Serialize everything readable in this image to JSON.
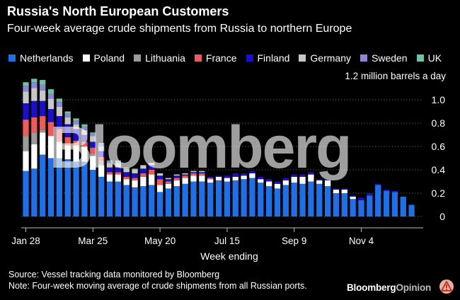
{
  "title": "Russia's North European Customers",
  "subtitle": "Four-week average crude shipments from Russia to northern Europe",
  "source": "Source: Vessel tracking data monitored by Bloomberg",
  "note": "Note: Four-week moving average of crude shipments from all Russian ports.",
  "brand": {
    "main": "Bloomberg",
    "opinion": "Opinion"
  },
  "watermark": "Bloomberg",
  "chart_data": {
    "type": "bar",
    "stacked": true,
    "title": "Russia's North European Customers",
    "subtitle": "Four-week average crude shipments from Russia to northern Europe",
    "xlabel": "Week ending",
    "ylabel": "1.2 million barrels a day",
    "ylim": [
      0,
      1.2
    ],
    "yticks": [
      0,
      0.2,
      0.4,
      0.6,
      0.8,
      1.0
    ],
    "ytick_labels": [
      "0",
      "0.2",
      "0.4",
      "0.6",
      "0.8",
      "1.0"
    ],
    "x_ticks": [
      {
        "index": 0,
        "label": "Jan 28"
      },
      {
        "index": 8,
        "label": "Mar 25"
      },
      {
        "index": 16,
        "label": "May 20"
      },
      {
        "index": 24,
        "label": "Jul 15"
      },
      {
        "index": 32,
        "label": "Sep 9"
      },
      {
        "index": 40,
        "label": "Nov 4"
      }
    ],
    "legend_position": "top",
    "series": [
      {
        "name": "Netherlands",
        "color": "#1f6fe6",
        "values": [
          0.39,
          0.41,
          0.53,
          0.5,
          0.5,
          0.49,
          0.47,
          0.47,
          0.4,
          0.34,
          0.3,
          0.3,
          0.27,
          0.25,
          0.26,
          0.27,
          0.21,
          0.24,
          0.26,
          0.28,
          0.3,
          0.3,
          0.29,
          0.31,
          0.3,
          0.31,
          0.32,
          0.33,
          0.29,
          0.26,
          0.24,
          0.27,
          0.29,
          0.28,
          0.3,
          0.28,
          0.26,
          0.2,
          0.2,
          0.15,
          0.14,
          0.18,
          0.27,
          0.22,
          0.21,
          0.17,
          0.1
        ]
      },
      {
        "name": "Poland",
        "color": "#ffffff",
        "values": [
          0.17,
          0.21,
          0.19,
          0.19,
          0.14,
          0.12,
          0.14,
          0.13,
          0.12,
          0.1,
          0.06,
          0.06,
          0.05,
          0.06,
          0.08,
          0.09,
          0.06,
          0.04,
          0.05,
          0.05,
          0.05,
          0.05,
          0.03,
          0.03,
          0.03,
          0.03,
          0.03,
          0.04,
          0.03,
          0.04,
          0.04,
          0.04,
          0.05,
          0.06,
          0.06,
          0.03,
          0.05,
          0.03,
          0.03,
          0.02,
          0,
          0,
          0,
          0,
          0,
          0,
          0
        ]
      },
      {
        "name": "Lithuania",
        "color": "#9b9b9b",
        "values": [
          0.13,
          0.1,
          0.02,
          0,
          0,
          0,
          0,
          0,
          0.02,
          0.04,
          0,
          0,
          0,
          0,
          0,
          0,
          0,
          0,
          0,
          0,
          0,
          0,
          0,
          0,
          0,
          0,
          0,
          0,
          0,
          0,
          0,
          0,
          0,
          0,
          0,
          0,
          0,
          0,
          0,
          0,
          0,
          0,
          0,
          0,
          0,
          0,
          0
        ]
      },
      {
        "name": "France",
        "color": "#ef5b5b",
        "values": [
          0.14,
          0.13,
          0.12,
          0.12,
          0.11,
          0.07,
          0.04,
          0.04,
          0.05,
          0.03,
          0.02,
          0.02,
          0.02,
          0.02,
          0.03,
          0.04,
          0.05,
          0.02,
          0.02,
          0.02,
          0.02,
          0.02,
          0.01,
          0,
          0,
          0,
          0,
          0,
          0,
          0,
          0,
          0,
          0,
          0,
          0,
          0,
          0,
          0,
          0,
          0,
          0,
          0,
          0,
          0,
          0,
          0,
          0
        ]
      },
      {
        "name": "Finland",
        "color": "#1b0fcc",
        "values": [
          0.14,
          0.14,
          0.13,
          0.11,
          0.11,
          0.11,
          0.1,
          0.06,
          0.05,
          0.05,
          0.04,
          0.04,
          0.04,
          0.04,
          0.04,
          0.04,
          0.03,
          0.02,
          0.02,
          0.01,
          0.01,
          0.01,
          0.01,
          0.01,
          0.02,
          0.03,
          0.02,
          0.02,
          0.02,
          0.02,
          0.02,
          0.02,
          0.02,
          0.02,
          0.02,
          0.01,
          0.01,
          0.01,
          0.01,
          0.01,
          0.02,
          0.02,
          0.01,
          0.01,
          0.01,
          0,
          0
        ]
      },
      {
        "name": "Germany",
        "color": "#c8c8c8",
        "values": [
          0.1,
          0.11,
          0.09,
          0.09,
          0.08,
          0.06,
          0.04,
          0.04,
          0.05,
          0.04,
          0.04,
          0.04,
          0.03,
          0.03,
          0.03,
          0.02,
          0.02,
          0.01,
          0.01,
          0.01,
          0.01,
          0.01,
          0,
          0,
          0,
          0,
          0,
          0,
          0,
          0,
          0,
          0,
          0,
          0,
          0,
          0,
          0,
          0,
          0,
          0,
          0,
          0,
          0,
          0,
          0,
          0,
          0
        ]
      },
      {
        "name": "Sweden",
        "color": "#8c86d6",
        "values": [
          0.05,
          0.05,
          0.05,
          0.04,
          0.04,
          0.03,
          0.03,
          0.03,
          0.02,
          0.02,
          0.01,
          0.01,
          0,
          0,
          0,
          0,
          0,
          0,
          0,
          0,
          0,
          0,
          0,
          0,
          0,
          0,
          0,
          0,
          0,
          0,
          0,
          0,
          0,
          0,
          0,
          0,
          0,
          0,
          0,
          0,
          0,
          0,
          0,
          0,
          0,
          0,
          0
        ]
      },
      {
        "name": "UK",
        "color": "#6fc2a2",
        "values": [
          0.03,
          0.03,
          0.04,
          0.04,
          0.03,
          0.02,
          0.02,
          0.02,
          0.01,
          0.01,
          0.01,
          0.01,
          0.01,
          0.01,
          0,
          0,
          0,
          0,
          0,
          0,
          0,
          0,
          0,
          0,
          0,
          0,
          0,
          0,
          0,
          0,
          0,
          0,
          0,
          0,
          0,
          0,
          0,
          0,
          0,
          0,
          0,
          0,
          0,
          0,
          0,
          0,
          0
        ]
      }
    ]
  }
}
